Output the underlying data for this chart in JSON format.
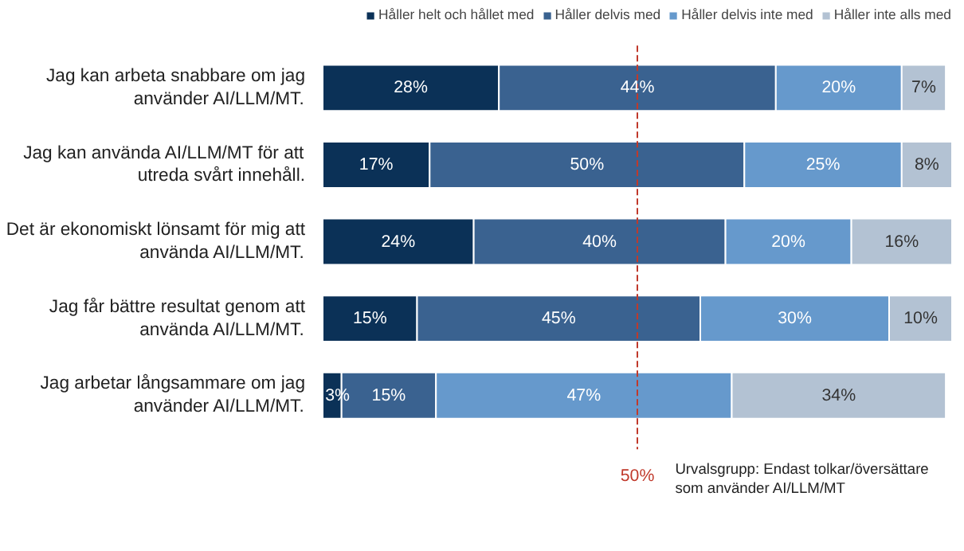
{
  "chart_data": {
    "type": "bar",
    "orientation": "horizontal",
    "stacked": true,
    "categories": [
      "Jag kan arbeta snabbare om jag\nanvänder AI/LLM/MT.",
      "Jag kan använda AI/LLM/MT för att\nutreda svårt innehåll.",
      "Det är ekonomiskt lönsamt för mig att\nanvända AI/LLM/MT.",
      "Jag får bättre resultat genom att\nanvända AI/LLM/MT.",
      "Jag arbetar långsammare om jag\nanvänder AI/LLM/MT."
    ],
    "series": [
      {
        "name": "Håller helt och hållet med",
        "color": "#0b3157",
        "values": [
          28,
          17,
          24,
          15,
          3
        ],
        "value_labels": [
          "28%",
          "17%",
          "24%",
          "15%",
          "3%"
        ]
      },
      {
        "name": "Håller delvis med",
        "color": "#3a6290",
        "values": [
          44,
          50,
          40,
          45,
          15
        ],
        "value_labels": [
          "44%",
          "50%",
          "40%",
          "45%",
          "15%"
        ]
      },
      {
        "name": "Håller delvis inte med",
        "color": "#6699cc",
        "values": [
          20,
          25,
          20,
          30,
          47
        ],
        "value_labels": [
          "20%",
          "25%",
          "20%",
          "30%",
          "47%"
        ]
      },
      {
        "name": "Håller inte alls med",
        "color": "#b3c2d3",
        "values": [
          7,
          8,
          16,
          10,
          34
        ],
        "value_labels": [
          "7%",
          "8%",
          "16%",
          "10%",
          "34%"
        ]
      }
    ],
    "xlim": [
      0,
      100
    ],
    "tick_labels": "y",
    "legend": "top",
    "grid": false,
    "ref_lines": [
      {
        "axis": "x",
        "value": 50,
        "label": "50%",
        "color": "#c0392b",
        "line_style": "dashed"
      }
    ],
    "annotations": [
      "Urvalsgrupp: Endast tolkar/översättare\nsom använder AI/LLM/MT"
    ]
  }
}
